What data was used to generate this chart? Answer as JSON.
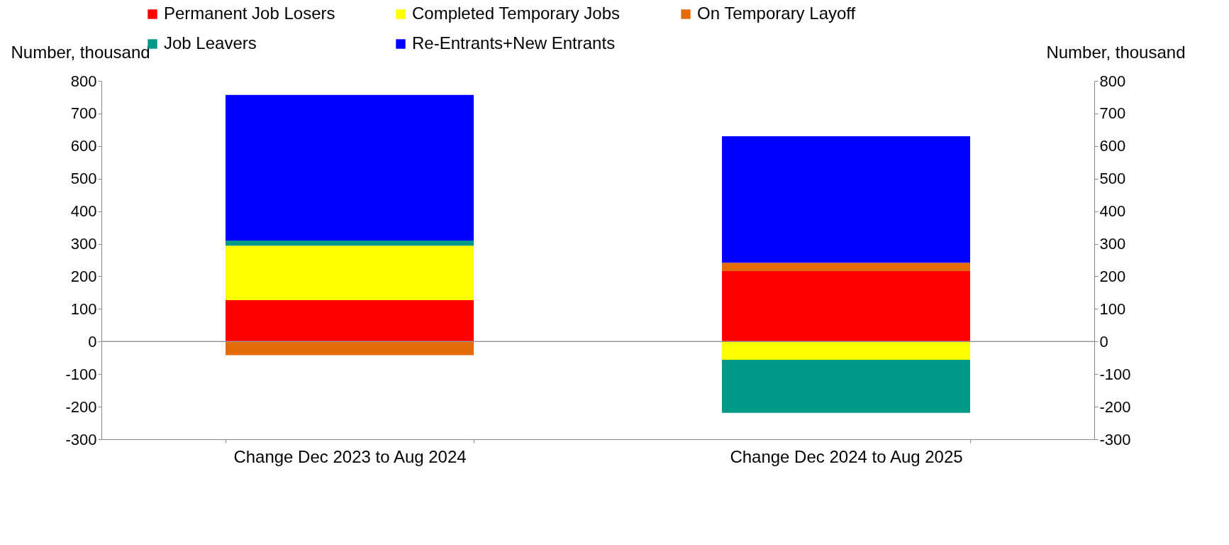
{
  "chart_data": {
    "type": "bar",
    "stacked": true,
    "categories": [
      "Change Dec 2023 to Aug 2024",
      "Change Dec 2024 to Aug 2025"
    ],
    "series": [
      {
        "name": "Permanent Job Losers",
        "color": "#ff0000",
        "values": [
          127,
          216
        ]
      },
      {
        "name": "Completed Temporary Jobs",
        "color": "#ffff00",
        "values": [
          167,
          -56
        ]
      },
      {
        "name": "On Temporary Layoff",
        "color": "#e36c09",
        "values": [
          -42,
          26
        ]
      },
      {
        "name": "Job Leavers",
        "color": "#009a88",
        "values": [
          16,
          -163
        ]
      },
      {
        "name": "Re-Entrants+New Entrants",
        "color": "#0000ff",
        "values": [
          447,
          388
        ]
      }
    ],
    "ylabel": "Number, thousand",
    "y2label": "Number, thousand",
    "ylim": [
      -300,
      800
    ],
    "yticks": [
      -300,
      -200,
      -100,
      0,
      100,
      200,
      300,
      400,
      500,
      600,
      700,
      800
    ],
    "y2lim": [
      -300,
      800
    ],
    "y2ticks": [
      -300,
      -200,
      -100,
      0,
      100,
      200,
      300,
      400,
      500,
      600,
      700,
      800
    ],
    "ref_lines": [
      {
        "axis": "y",
        "value": 0,
        "color": "#999999"
      }
    ],
    "legend": "top",
    "grid": false
  }
}
